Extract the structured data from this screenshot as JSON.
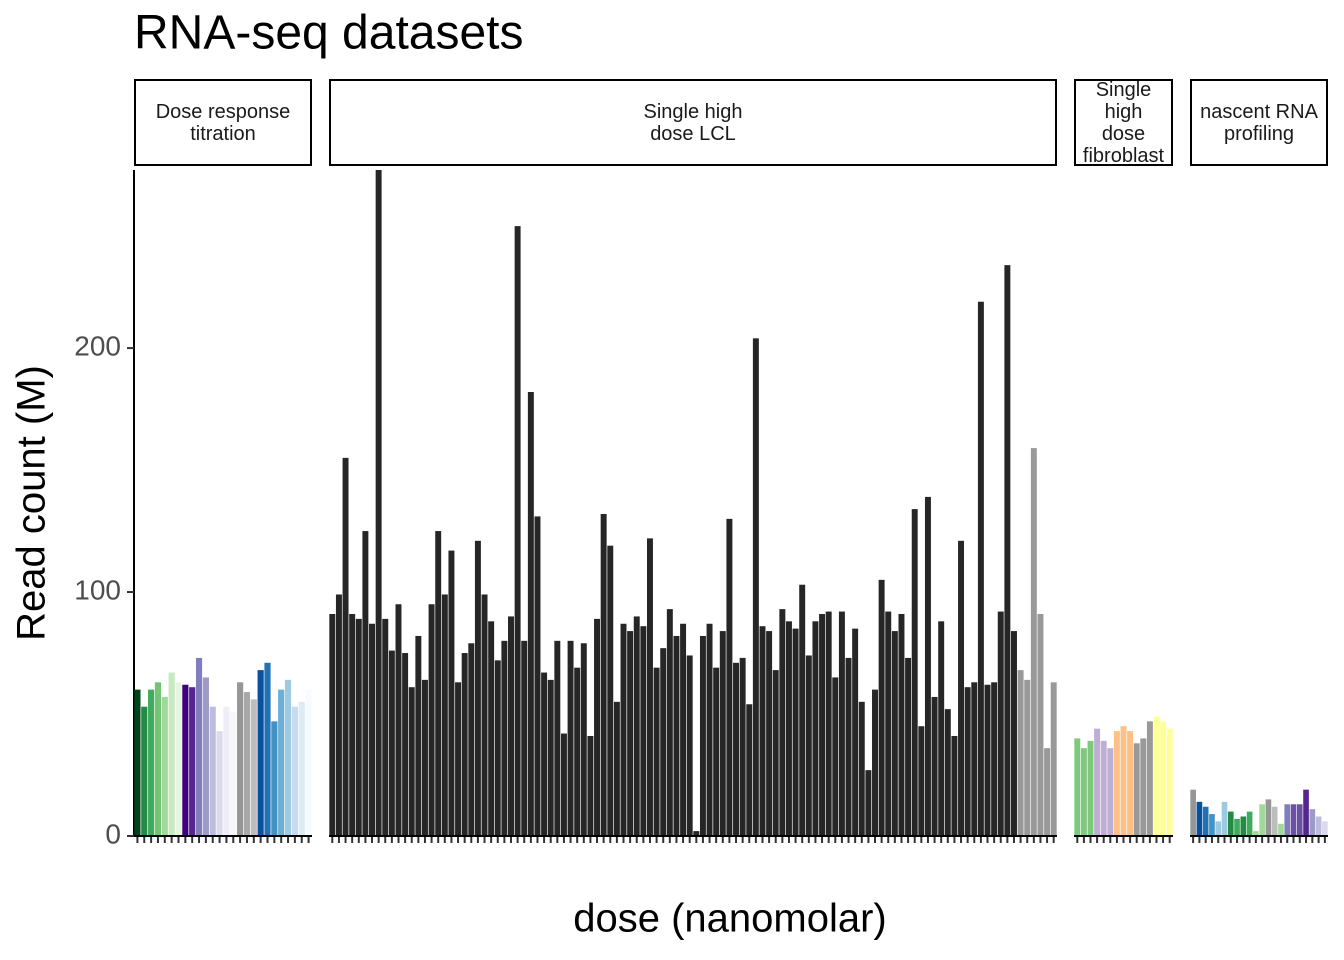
{
  "chart_data": {
    "type": "bar",
    "title": "RNA-seq datasets",
    "x_label": "dose (nanomolar)",
    "y_label": "Read count (M)",
    "ylim": [
      0,
      273
    ],
    "yticks": [
      0,
      100,
      200
    ],
    "facets": [
      {
        "title": "Dose response\ntitration",
        "values": [
          60,
          53,
          60,
          63,
          57,
          67,
          63,
          62,
          61,
          73,
          65,
          53,
          43,
          53,
          51,
          63,
          59,
          56,
          68,
          71,
          47,
          60,
          64,
          53,
          55,
          60
        ],
        "colors": [
          "#00441b",
          "#238b45",
          "#41ab5d",
          "#74c476",
          "#a1d99b",
          "#c7e9c0",
          "#e5f5e0",
          "#3f007d",
          "#54278f",
          "#807dba",
          "#9e9ac8",
          "#bcbddc",
          "#dadaeb",
          "#efedf5",
          "#f7f7f7",
          "#969696",
          "#a8a8a8",
          "#bdbdbd",
          "#08519c",
          "#2171b5",
          "#4292c6",
          "#6baed6",
          "#9ecae1",
          "#c6dbef",
          "#deebf7",
          "#f7fbff"
        ]
      },
      {
        "title": "Single high\ndose LCL",
        "values": [
          91,
          99,
          155,
          91,
          89,
          125,
          87,
          273,
          89,
          76,
          95,
          75,
          61,
          82,
          64,
          95,
          125,
          99,
          117,
          63,
          75,
          79,
          121,
          99,
          88,
          72,
          80,
          90,
          250,
          80,
          182,
          131,
          67,
          64,
          80,
          42,
          80,
          69,
          79,
          41,
          89,
          132,
          119,
          55,
          87,
          84,
          90,
          86,
          122,
          69,
          77,
          93,
          82,
          87,
          74,
          2,
          82,
          87,
          69,
          84,
          130,
          71,
          73,
          54,
          204,
          86,
          84,
          68,
          93,
          88,
          85,
          103,
          74,
          88,
          91,
          92,
          65,
          92,
          73,
          85,
          55,
          27,
          60,
          105,
          92,
          84,
          91,
          73,
          134,
          45,
          139,
          57,
          88,
          52,
          41,
          121,
          61,
          63,
          219,
          62,
          63,
          92,
          234,
          84,
          68,
          64,
          159,
          91,
          36,
          63
        ],
        "color": "#262626",
        "na_color": "#999999",
        "na_count": 6
      },
      {
        "title": "Single high\ndose\nfibroblast",
        "values": [
          40,
          36,
          39,
          44,
          39,
          36,
          43,
          45,
          43,
          38,
          40,
          47,
          49,
          47,
          44
        ],
        "colors": [
          "#7fc97f",
          "#7fc97f",
          "#7fc97f",
          "#beaed4",
          "#beaed4",
          "#beaed4",
          "#fdc086",
          "#fdc086",
          "#fdc086",
          "#999999",
          "#999999",
          "#999999",
          "#ffff99",
          "#ffff99",
          "#ffff99"
        ]
      },
      {
        "title": "nascent RNA\nprofiling",
        "values": [
          19,
          14,
          12,
          9,
          6,
          14,
          10,
          7,
          8,
          10,
          2,
          13,
          15,
          12,
          5,
          13,
          13,
          13,
          19,
          11,
          8,
          6
        ],
        "colors": [
          "#969696",
          "#08519c",
          "#2171b5",
          "#4292c6",
          "#9ecae1",
          "#9ecae1",
          "#238b45",
          "#41ab5d",
          "#238b45",
          "#41ab5d",
          "#a1d99b",
          "#a1d99b",
          "#969696",
          "#bdbdbd",
          "#a1d99b",
          "#807dba",
          "#6a51a3",
          "#6a51a3",
          "#54278f",
          "#9e9ac8",
          "#bcbddc",
          "#dadaeb"
        ]
      }
    ]
  }
}
